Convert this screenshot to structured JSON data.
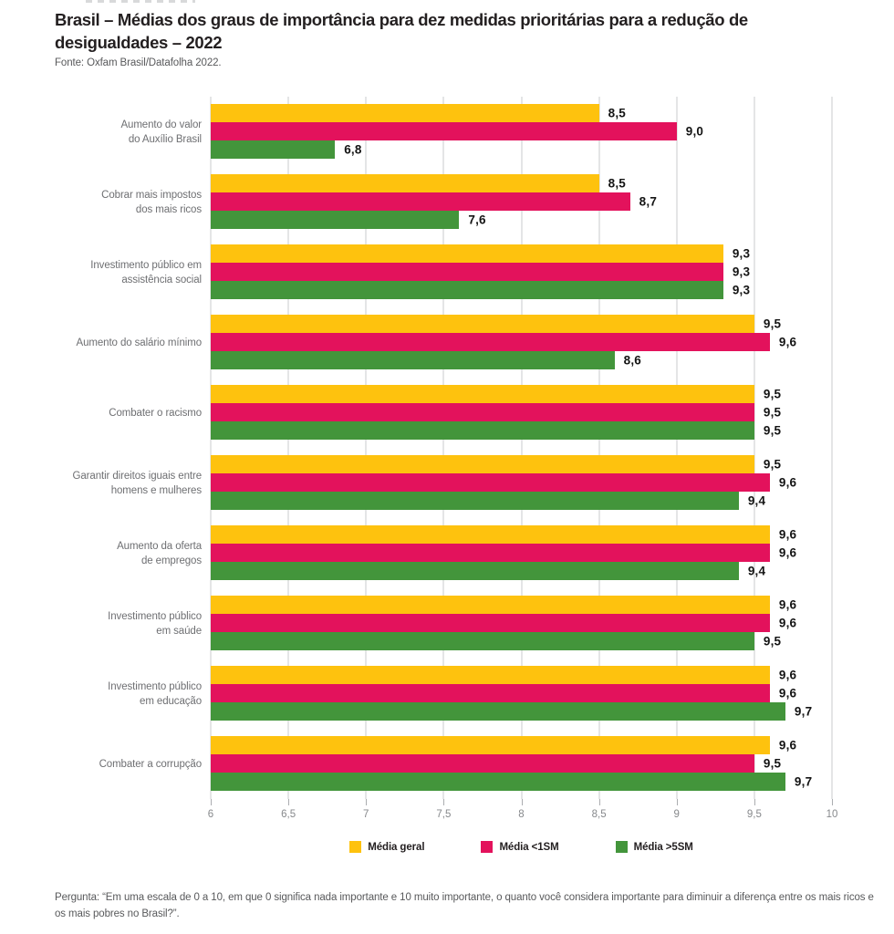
{
  "header": {
    "title_lines": [
      "Brasil – Médias dos graus de importância para dez medidas prioritárias para a redução de",
      "desigualdades – 2022"
    ],
    "source": "Fonte: Oxfam Brasil/Datafolha 2022."
  },
  "footer": {
    "question_lines": [
      "Pergunta: “Em uma escala de 0 a 10, em que 0 significa nada importante e 10 muito importante, o quanto você considera importante para diminuir a diferença entre os",
      "mais ricos e os mais pobres no Brasil?”."
    ]
  },
  "chart_data": {
    "type": "bar",
    "orientation": "horizontal",
    "title": "Brasil – Médias dos graus de importância para dez medidas prioritárias para a redução de desigualdades – 2022",
    "xlabel": "",
    "ylabel": "",
    "xlim": [
      6,
      10
    ],
    "xticks": [
      {
        "value": 6,
        "label": "6"
      },
      {
        "value": 6.5,
        "label": "6,5"
      },
      {
        "value": 7,
        "label": "7"
      },
      {
        "value": 7.5,
        "label": "7,5"
      },
      {
        "value": 8,
        "label": "8"
      },
      {
        "value": 8.5,
        "label": "8,5"
      },
      {
        "value": 9,
        "label": "9"
      },
      {
        "value": 9.5,
        "label": "9,5"
      },
      {
        "value": 10,
        "label": "10"
      }
    ],
    "grid": true,
    "legend_position": "bottom-center",
    "categories": [
      {
        "lines": [
          "Aumento do valor",
          "do Auxílio Brasil"
        ]
      },
      {
        "lines": [
          "Cobrar mais impostos",
          "dos mais ricos"
        ]
      },
      {
        "lines": [
          "Investimento público em",
          "assistência social"
        ]
      },
      {
        "lines": [
          "Aumento do salário mínimo"
        ]
      },
      {
        "lines": [
          "Combater o racismo"
        ]
      },
      {
        "lines": [
          "Garantir direitos iguais entre",
          "homens e mulheres"
        ]
      },
      {
        "lines": [
          "Aumento da oferta",
          "de empregos"
        ]
      },
      {
        "lines": [
          "Investimento público",
          "em saúde"
        ]
      },
      {
        "lines": [
          "Investimento público",
          "em educação"
        ]
      },
      {
        "lines": [
          "Combater a corrupção"
        ]
      }
    ],
    "series": [
      {
        "name": "Média geral",
        "color": "#FEC20E",
        "values": [
          8.5,
          8.5,
          9.3,
          9.5,
          9.5,
          9.5,
          9.6,
          9.6,
          9.6,
          9.6
        ],
        "value_labels": [
          "8,5",
          "8,5",
          "9,3",
          "9,5",
          "9,5",
          "9,5",
          "9,6",
          "9,6",
          "9,6",
          "9,6"
        ]
      },
      {
        "name": "Média <1SM",
        "color": "#E3125C",
        "values": [
          9.0,
          8.7,
          9.3,
          9.6,
          9.5,
          9.6,
          9.6,
          9.6,
          9.6,
          9.5
        ],
        "value_labels": [
          "9,0",
          "8,7",
          "9,3",
          "9,6",
          "9,5",
          "9,6",
          "9,6",
          "9,6",
          "9,6",
          "9,5"
        ]
      },
      {
        "name": "Média >5SM",
        "color": "#43953B",
        "values": [
          6.8,
          7.6,
          9.3,
          8.6,
          9.5,
          9.4,
          9.4,
          9.5,
          9.7,
          9.7
        ],
        "value_labels": [
          "6,8",
          "7,6",
          "9,3",
          "8,6",
          "9,5",
          "9,4",
          "9,4",
          "9,5",
          "9,7",
          "9,7"
        ]
      }
    ]
  }
}
